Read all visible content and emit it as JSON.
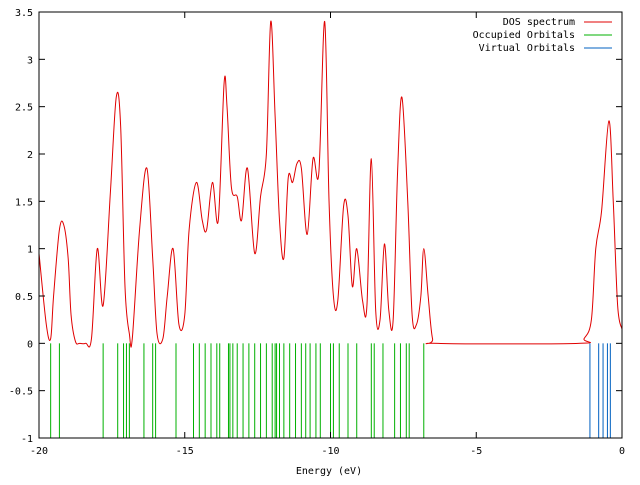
{
  "chart_data": {
    "type": "line",
    "xlabel": "Energy (eV)",
    "ylabel": "",
    "xlim": [
      -20,
      0
    ],
    "ylim": [
      -1,
      3.5
    ],
    "xticks": [
      -20,
      -15,
      -10,
      -5,
      0
    ],
    "xtick_labels": [
      "-20",
      "-15",
      "-10",
      "-5",
      "0"
    ],
    "yticks": [
      -1,
      -0.5,
      0,
      0.5,
      1,
      1.5,
      2,
      2.5,
      3,
      3.5
    ],
    "ytick_labels": [
      "-1",
      "-0.5",
      "0",
      "0.5",
      "1",
      "1.5",
      "2",
      "2.5",
      "3",
      "3.5"
    ],
    "grid": false,
    "legend_position": "top-right",
    "series": [
      {
        "name": "DOS spectrum",
        "color": "#e00000",
        "kind": "curve",
        "x": [
          -20,
          -19.75,
          -19.6,
          -19.5,
          -19.3,
          -19.15,
          -19.0,
          -18.9,
          -18.75,
          -18.6,
          -18.4,
          -18.2,
          -18.0,
          -17.8,
          -17.55,
          -17.35,
          -17.2,
          -17.05,
          -16.9,
          -16.8,
          -16.55,
          -16.3,
          -16.1,
          -15.95,
          -15.75,
          -15.6,
          -15.4,
          -15.2,
          -15.0,
          -14.85,
          -14.6,
          -14.4,
          -14.25,
          -14.05,
          -13.85,
          -13.65,
          -13.55,
          -13.4,
          -13.2,
          -13.05,
          -12.85,
          -12.6,
          -12.4,
          -12.2,
          -12.05,
          -11.9,
          -11.75,
          -11.6,
          -11.45,
          -11.3,
          -11.15,
          -11.0,
          -10.8,
          -10.6,
          -10.4,
          -10.2,
          -10.05,
          -9.9,
          -9.75,
          -9.55,
          -9.4,
          -9.25,
          -9.1,
          -8.9,
          -8.75,
          -8.6,
          -8.45,
          -8.3,
          -8.15,
          -8.0,
          -7.85,
          -7.7,
          -7.55,
          -7.35,
          -7.2,
          -7.05,
          -6.9,
          -6.8,
          -6.65,
          -6.5,
          -6.3,
          -1.5,
          -1.3,
          -1.05,
          -0.9,
          -0.7,
          -0.45,
          -0.3,
          -0.15,
          0.0
        ],
        "y": [
          0.95,
          0.2,
          0.05,
          0.5,
          1.2,
          1.25,
          0.9,
          0.3,
          0.02,
          0.0,
          0.0,
          0.05,
          1.0,
          0.4,
          1.6,
          2.6,
          2.3,
          0.6,
          0.1,
          0.05,
          1.2,
          1.85,
          0.9,
          0.1,
          0.05,
          0.5,
          1.0,
          0.2,
          0.3,
          1.2,
          1.7,
          1.3,
          1.2,
          1.7,
          1.3,
          2.75,
          2.5,
          1.65,
          1.55,
          1.3,
          1.85,
          0.95,
          1.55,
          2.0,
          3.4,
          2.4,
          1.3,
          0.9,
          1.75,
          1.7,
          1.9,
          1.85,
          1.15,
          1.95,
          1.8,
          3.4,
          1.5,
          0.5,
          0.45,
          1.45,
          1.35,
          0.6,
          1.0,
          0.45,
          0.4,
          1.95,
          0.35,
          0.25,
          1.05,
          0.35,
          0.25,
          1.8,
          2.6,
          1.5,
          0.3,
          0.2,
          0.5,
          1.0,
          0.5,
          0.05,
          0.0,
          0.0,
          0.05,
          0.25,
          1.0,
          1.4,
          2.35,
          1.5,
          0.4,
          0.15
        ]
      },
      {
        "name": "Occupied Orbitals",
        "color": "#00b000",
        "kind": "sticks",
        "y_from": -1,
        "y_to": 0,
        "x": [
          -19.6,
          -19.3,
          -17.8,
          -17.3,
          -17.1,
          -17.0,
          -16.9,
          -16.4,
          -16.1,
          -16.0,
          -15.3,
          -14.7,
          -14.5,
          -14.3,
          -14.1,
          -13.9,
          -13.8,
          -13.5,
          -13.45,
          -13.35,
          -13.2,
          -13.0,
          -12.8,
          -12.6,
          -12.4,
          -12.2,
          -12.0,
          -11.9,
          -11.85,
          -11.75,
          -11.6,
          -11.4,
          -11.2,
          -11.0,
          -10.85,
          -10.7,
          -10.5,
          -10.35,
          -10.0,
          -9.9,
          -9.7,
          -9.4,
          -9.1,
          -8.6,
          -8.5,
          -8.2,
          -7.8,
          -7.6,
          -7.4,
          -7.3,
          -6.8
        ]
      },
      {
        "name": "Virtual Orbitals",
        "color": "#0060c0",
        "kind": "sticks",
        "y_from": -1,
        "y_to": 0,
        "x": [
          -1.1,
          -0.8,
          -0.65,
          -0.5,
          -0.4
        ]
      }
    ]
  }
}
